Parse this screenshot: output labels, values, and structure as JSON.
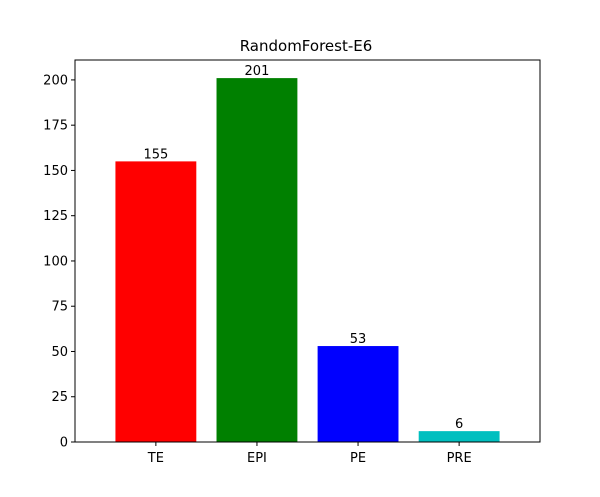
{
  "chart_data": {
    "type": "bar",
    "title": "RandomForest-E6",
    "xlabel": "",
    "ylabel": "",
    "categories": [
      "TE",
      "EPI",
      "PE",
      "PRE"
    ],
    "values": [
      155,
      201,
      53,
      6
    ],
    "data_labels": [
      "155",
      "201",
      "53",
      "6"
    ],
    "colors": [
      "#ff0000",
      "#008000",
      "#0000ff",
      "#00bfbf"
    ],
    "ylim": [
      0,
      211
    ],
    "yticks": [
      0,
      25,
      50,
      75,
      100,
      125,
      150,
      175,
      200
    ],
    "grid": false,
    "legend": "none"
  }
}
